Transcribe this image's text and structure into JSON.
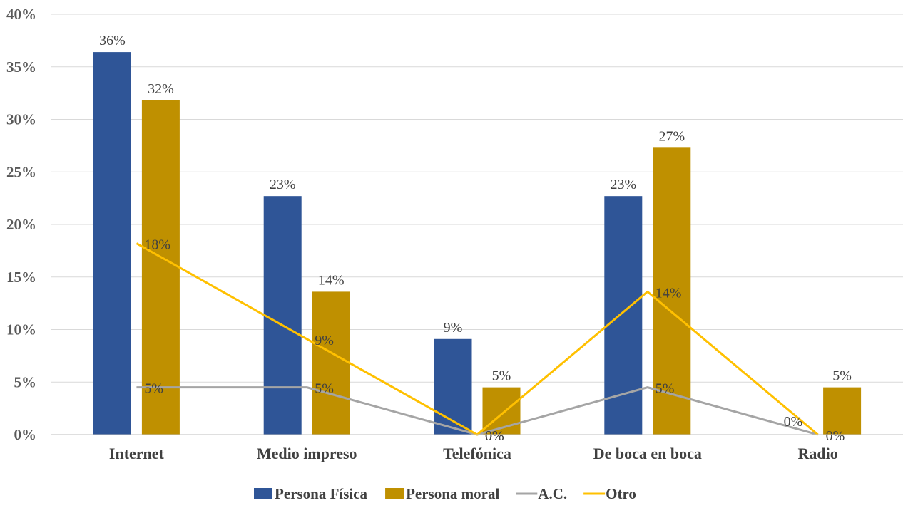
{
  "chart_data": {
    "type": "bar",
    "categories": [
      "Internet",
      "Medio impreso",
      "Telefónica",
      "De boca en boca",
      "Radio"
    ],
    "ylim": [
      0,
      40
    ],
    "yticks": [
      "0%",
      "5%",
      "10%",
      "15%",
      "20%",
      "25%",
      "30%",
      "35%",
      "40%"
    ],
    "series": [
      {
        "name": "Persona Física",
        "kind": "bar",
        "color": "#2F5597",
        "values": [
          36.4,
          22.7,
          9.1,
          22.7,
          0
        ],
        "labels": [
          "36%",
          "23%",
          "9%",
          "23%",
          "0%"
        ]
      },
      {
        "name": "Persona moral",
        "kind": "bar",
        "color": "#BF9000",
        "values": [
          31.8,
          13.6,
          4.5,
          27.3,
          4.5
        ],
        "labels": [
          "32%",
          "14%",
          "5%",
          "27%",
          "5%"
        ]
      },
      {
        "name": "A.C.",
        "kind": "line",
        "color": "#A5A5A5",
        "values": [
          4.5,
          4.5,
          0,
          4.5,
          0
        ],
        "labels": [
          "5%",
          "5%",
          "0%",
          "5%",
          "0%"
        ]
      },
      {
        "name": "Otro",
        "kind": "line",
        "color": "#FFC000",
        "values": [
          18.2,
          9.1,
          0,
          13.6,
          0
        ],
        "labels": [
          "18%",
          "9%",
          "0%",
          "14%",
          "0%"
        ]
      }
    ],
    "legend_position": "bottom"
  }
}
